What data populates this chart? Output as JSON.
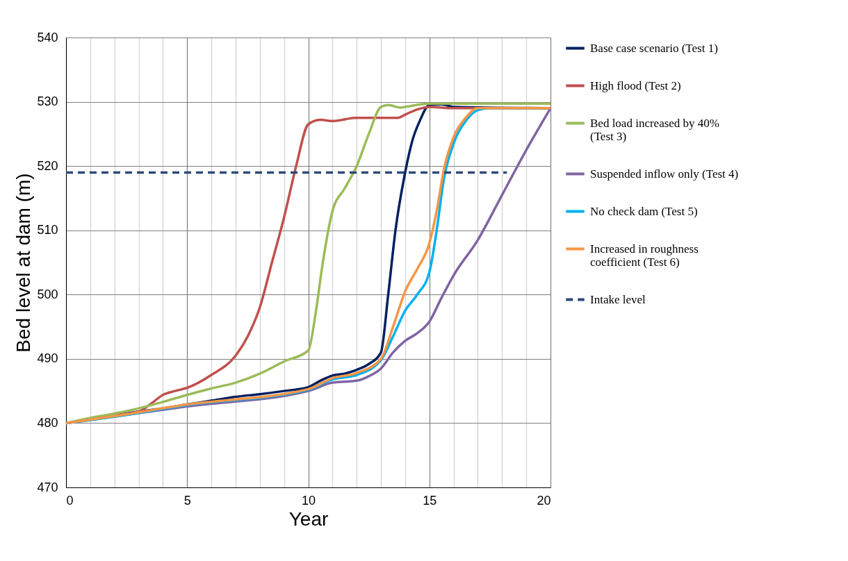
{
  "chart_data": {
    "type": "line",
    "xlabel": "Year",
    "ylabel": "Bed level at dam (m)",
    "xlim": [
      0,
      20
    ],
    "ylim": [
      470,
      540
    ],
    "xticks": [
      0,
      {
        "value": 1,
        "label": null
      },
      {
        "value": 2,
        "label": null
      },
      {
        "value": 3,
        "label": null
      },
      {
        "value": 4,
        "label": null
      },
      5,
      {
        "value": 6,
        "label": null
      },
      {
        "value": 7,
        "label": null
      },
      {
        "value": 8,
        "label": null
      },
      {
        "value": 9,
        "label": null
      },
      10,
      {
        "value": 11,
        "label": null
      },
      {
        "value": 12,
        "label": null
      },
      {
        "value": 13,
        "label": null
      },
      {
        "value": 14,
        "label": null
      },
      15,
      {
        "value": 16,
        "label": null
      },
      {
        "value": 17,
        "label": null
      },
      {
        "value": 18,
        "label": null
      },
      {
        "value": 19,
        "label": null
      },
      20
    ],
    "yticks": [
      470,
      480,
      490,
      500,
      510,
      520,
      530,
      540
    ],
    "grid": true,
    "legend": "right",
    "marker": "none",
    "series": [
      {
        "name": "Base case scenario (Test 1)",
        "color": "#002060",
        "line_style": "solid",
        "x": [
          0,
          1,
          2,
          3,
          4,
          5,
          6,
          7,
          8,
          9,
          10,
          10.5,
          11,
          11.5,
          12,
          12.5,
          13,
          13.3,
          13.6,
          14,
          14.3,
          14.6,
          15,
          15.5,
          16,
          20
        ],
        "values": [
          480,
          480.6,
          481.2,
          481.8,
          482.3,
          482.9,
          483.5,
          484.1,
          484.5,
          485,
          485.6,
          486.6,
          487.4,
          487.7,
          488.3,
          489.2,
          491,
          500,
          510,
          519,
          524,
          527,
          529.5,
          529.6,
          529.2,
          529
        ]
      },
      {
        "name": "High flood  (Test 2)",
        "color": "#c0504d",
        "line_style": "solid",
        "x": [
          0,
          1,
          2,
          3,
          3.5,
          4,
          4.5,
          5,
          6,
          7,
          7.5,
          8,
          8.5,
          9,
          9.5,
          10,
          10.5,
          11,
          12,
          13,
          13.7,
          14,
          14.5,
          15,
          16,
          20
        ],
        "values": [
          480,
          480.5,
          481.2,
          481.8,
          483,
          484.4,
          485,
          485.5,
          487.5,
          490.5,
          493.5,
          498,
          505,
          512,
          520,
          526.5,
          527.2,
          527,
          527.5,
          527.5,
          527.5,
          528,
          528.8,
          529.2,
          529,
          529
        ]
      },
      {
        "name": "Bed load increased by 40% (Test 3)",
        "color": "#9bbb59",
        "line_style": "solid",
        "x": [
          0,
          1,
          2,
          3,
          4,
          5,
          6,
          7,
          8,
          9,
          10,
          10.3,
          10.6,
          11,
          11.5,
          12,
          12.5,
          13,
          13.3,
          13.8,
          14,
          15,
          20
        ],
        "values": [
          480,
          480.8,
          481.5,
          482.3,
          483.3,
          484.4,
          485.4,
          486.3,
          487.7,
          489.6,
          491.3,
          497,
          505,
          513,
          516.5,
          520,
          525,
          529.2,
          529.5,
          529.1,
          529.2,
          529.7,
          529.7
        ]
      },
      {
        "name": "Suspended inflow only (Test 4)",
        "color": "#8064a2",
        "line_style": "solid",
        "x": [
          0,
          5,
          10,
          11,
          12,
          12.5,
          13,
          13.5,
          14,
          14.5,
          15,
          15.5,
          16,
          17,
          18,
          19,
          20
        ],
        "values": [
          480,
          482.6,
          485,
          486.3,
          486.6,
          487.3,
          488.5,
          491,
          492.8,
          494,
          495.8,
          499.5,
          503,
          508.5,
          515.5,
          522.5,
          529
        ]
      },
      {
        "name": "No check dam (Test 5)",
        "color": "#00b0f0",
        "line_style": "solid",
        "x": [
          0,
          2,
          5,
          10,
          11,
          12,
          13,
          13.5,
          14,
          14.5,
          15,
          15.3,
          15.6,
          16,
          16.5,
          17,
          17.5,
          20
        ],
        "values": [
          480,
          481,
          482.8,
          485.2,
          486.8,
          487.5,
          489.8,
          493.5,
          497.5,
          500,
          503.5,
          510,
          518,
          523.5,
          527,
          528.7,
          529,
          529
        ]
      },
      {
        "name": "Increased in roughness coefficient (Test 6)",
        "color": "#f79646",
        "line_style": "solid",
        "x": [
          0,
          2,
          5,
          10,
          11,
          12,
          13,
          13.5,
          14,
          14.5,
          15,
          15.3,
          15.6,
          16,
          16.5,
          17,
          20
        ],
        "values": [
          480,
          481.1,
          482.9,
          485.3,
          487,
          487.8,
          490,
          495,
          500.5,
          504,
          508,
          513,
          519.5,
          524.5,
          527.5,
          529,
          529
        ]
      },
      {
        "name": "Intake level",
        "color": "#2e4a78",
        "line_style": "dashed",
        "x": [
          0,
          18.2
        ],
        "values": [
          519,
          519
        ]
      }
    ]
  }
}
